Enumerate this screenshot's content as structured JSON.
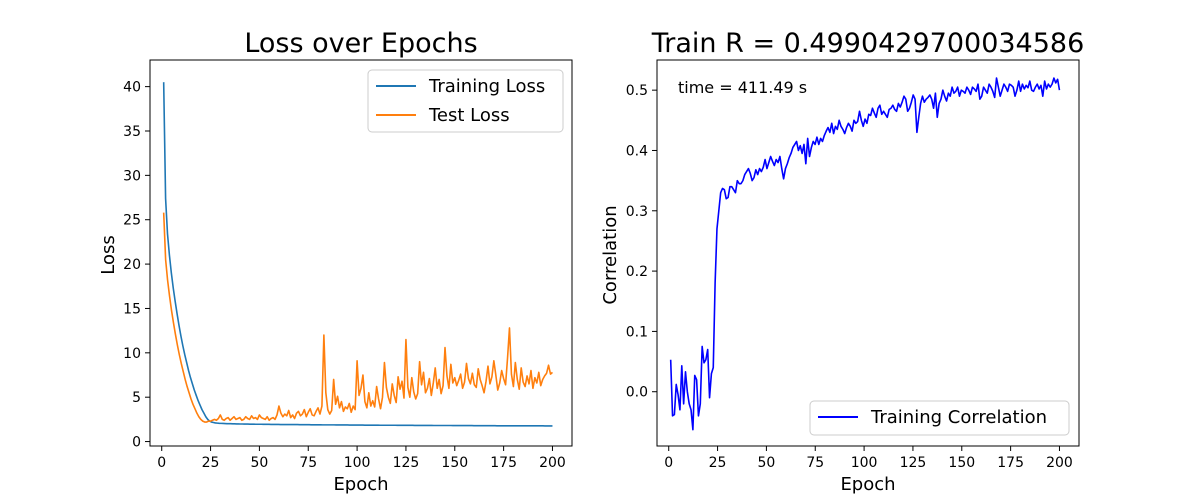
{
  "chart_data": [
    {
      "type": "line",
      "title": "Loss over Epochs",
      "xlabel": "Epoch",
      "ylabel": "Loss",
      "xlim": [
        -6,
        210
      ],
      "ylim": [
        -0.5,
        43
      ],
      "xticks": [
        0,
        25,
        50,
        75,
        100,
        125,
        150,
        175,
        200
      ],
      "yticks": [
        0,
        5,
        10,
        15,
        20,
        25,
        30,
        35,
        40
      ],
      "grid": false,
      "legend_position": "top-right",
      "x_range": [
        1,
        200
      ],
      "series": [
        {
          "name": "Training Loss",
          "color": "#1f77b4",
          "values": [
            40.5,
            27.4,
            23.4,
            21.0,
            19.0,
            17.3,
            15.8,
            14.4,
            13.1,
            11.9,
            10.8,
            9.8,
            8.9,
            8.0,
            7.2,
            6.5,
            5.8,
            5.2,
            4.6,
            4.1,
            3.6,
            3.2,
            2.8,
            2.5,
            2.3,
            2.2,
            2.15,
            2.1,
            2.08,
            2.06,
            2.05,
            2.04,
            2.03,
            2.02,
            2.02,
            2.01,
            2.0,
            2.0,
            1.99,
            1.99,
            1.98,
            1.98,
            1.97,
            1.97,
            1.97,
            1.96,
            1.96,
            1.96,
            1.95,
            1.95,
            1.95,
            1.95,
            1.94,
            1.94,
            1.94,
            1.94,
            1.93,
            1.93,
            1.93,
            1.93,
            1.93,
            1.92,
            1.92,
            1.92,
            1.92,
            1.92,
            1.91,
            1.91,
            1.91,
            1.91,
            1.91,
            1.9,
            1.9,
            1.9,
            1.9,
            1.9,
            1.9,
            1.89,
            1.89,
            1.89,
            1.89,
            1.89,
            1.89,
            1.88,
            1.88,
            1.88,
            1.88,
            1.88,
            1.88,
            1.88,
            1.87,
            1.87,
            1.87,
            1.87,
            1.87,
            1.87,
            1.87,
            1.86,
            1.86,
            1.86,
            1.86,
            1.86,
            1.86,
            1.86,
            1.86,
            1.85,
            1.85,
            1.85,
            1.85,
            1.85,
            1.85,
            1.85,
            1.85,
            1.84,
            1.84,
            1.84,
            1.84,
            1.84,
            1.84,
            1.84,
            1.84,
            1.84,
            1.83,
            1.83,
            1.83,
            1.83,
            1.83,
            1.83,
            1.83,
            1.83,
            1.83,
            1.82,
            1.82,
            1.82,
            1.82,
            1.82,
            1.82,
            1.82,
            1.82,
            1.82,
            1.82,
            1.81,
            1.81,
            1.81,
            1.81,
            1.81,
            1.81,
            1.81,
            1.81,
            1.81,
            1.81,
            1.8,
            1.8,
            1.8,
            1.8,
            1.8,
            1.8,
            1.8,
            1.8,
            1.8,
            1.8,
            1.8,
            1.79,
            1.79,
            1.79,
            1.79,
            1.79,
            1.79,
            1.79,
            1.79,
            1.79,
            1.79,
            1.79,
            1.79,
            1.78,
            1.78,
            1.78,
            1.78,
            1.78,
            1.78,
            1.78,
            1.78,
            1.78,
            1.78,
            1.78,
            1.78,
            1.77,
            1.77,
            1.77,
            1.77,
            1.77,
            1.77,
            1.77,
            1.77,
            1.77,
            1.77,
            1.77,
            1.77,
            1.77,
            1.76,
            1.76,
            1.76,
            1.76,
            1.76
          ]
        },
        {
          "name": "Test Loss",
          "color": "#ff7f0e",
          "values": [
            25.8,
            20.5,
            18.2,
            16.4,
            14.8,
            13.4,
            12.1,
            10.9,
            9.8,
            8.8,
            7.9,
            7.0,
            6.2,
            5.5,
            4.8,
            4.2,
            3.7,
            3.2,
            2.8,
            2.5,
            2.3,
            2.2,
            2.2,
            2.3,
            2.3,
            2.4,
            2.5,
            2.4,
            2.6,
            3.0,
            2.5,
            2.4,
            2.6,
            2.7,
            2.4,
            2.6,
            2.8,
            2.5,
            2.6,
            2.7,
            2.4,
            2.5,
            2.8,
            2.6,
            2.5,
            2.9,
            2.6,
            2.7,
            2.5,
            3.0,
            2.7,
            2.6,
            2.5,
            2.8,
            2.4,
            2.6,
            2.7,
            2.5,
            3.0,
            4.0,
            3.2,
            2.8,
            3.1,
            2.9,
            3.5,
            2.7,
            3.0,
            2.6,
            3.2,
            3.4,
            2.9,
            3.1,
            3.6,
            2.8,
            3.3,
            3.7,
            3.0,
            2.9,
            3.4,
            3.8,
            3.1,
            4.0,
            12.0,
            5.5,
            3.6,
            3.1,
            3.5,
            7.0,
            4.2,
            5.1,
            3.8,
            4.5,
            3.4,
            3.9,
            3.7,
            4.3,
            3.3,
            4.0,
            3.6,
            9.1,
            5.2,
            6.0,
            7.5,
            4.5,
            3.8,
            5.5,
            4.0,
            4.6,
            3.9,
            6.2,
            4.8,
            3.7,
            5.0,
            8.9,
            6.1,
            5.0,
            4.3,
            6.5,
            5.2,
            4.4,
            7.3,
            5.9,
            6.8,
            4.9,
            11.5,
            6.1,
            5.0,
            7.2,
            5.6,
            4.8,
            5.4,
            9.0,
            6.4,
            7.8,
            5.5,
            6.0,
            7.1,
            5.2,
            6.6,
            8.3,
            6.0,
            7.0,
            5.4,
            6.3,
            10.6,
            7.4,
            6.0,
            8.7,
            6.6,
            7.2,
            6.3,
            6.9,
            7.6,
            6.0,
            6.7,
            8.8,
            7.1,
            6.5,
            7.7,
            6.4,
            6.1,
            8.2,
            7.0,
            6.3,
            5.5,
            6.8,
            8.5,
            6.5,
            7.3,
            9.1,
            7.5,
            5.8,
            6.6,
            8.0,
            7.1,
            6.4,
            9.4,
            12.8,
            7.6,
            6.2,
            8.9,
            7.0,
            5.9,
            8.3,
            6.7,
            6.2,
            7.4,
            6.5,
            8.0,
            6.0,
            7.2,
            6.6,
            7.8,
            6.3,
            7.0,
            7.4,
            7.7,
            8.6,
            7.6,
            7.8
          ]
        }
      ]
    },
    {
      "type": "line",
      "title": "Train R = 0.4990429700034586",
      "xlabel": "Epoch",
      "ylabel": "Correlation",
      "xlim": [
        -6,
        210
      ],
      "ylim": [
        -0.09,
        0.55
      ],
      "xticks": [
        0,
        25,
        50,
        75,
        100,
        125,
        150,
        175,
        200
      ],
      "yticks": [
        0.0,
        0.1,
        0.2,
        0.3,
        0.4,
        0.5
      ],
      "grid": false,
      "legend_position": "bottom-right",
      "annotation": "time = 411.49 s",
      "x_range": [
        1,
        200
      ],
      "series": [
        {
          "name": "Training Correlation",
          "color": "#0000ff",
          "values": [
            0.053,
            -0.04,
            -0.038,
            0.012,
            -0.005,
            -0.03,
            0.043,
            -0.02,
            0.033,
            0.0,
            -0.02,
            -0.03,
            -0.063,
            0.027,
            0.02,
            -0.04,
            -0.02,
            0.075,
            0.048,
            0.053,
            0.07,
            -0.01,
            0.03,
            0.04,
            0.18,
            0.27,
            0.3,
            0.33,
            0.337,
            0.335,
            0.32,
            0.322,
            0.34,
            0.34,
            0.335,
            0.33,
            0.35,
            0.345,
            0.345,
            0.35,
            0.36,
            0.365,
            0.37,
            0.362,
            0.35,
            0.355,
            0.368,
            0.36,
            0.37,
            0.365,
            0.372,
            0.385,
            0.37,
            0.38,
            0.39,
            0.382,
            0.375,
            0.385,
            0.38,
            0.39,
            0.37,
            0.353,
            0.37,
            0.378,
            0.388,
            0.395,
            0.405,
            0.41,
            0.415,
            0.4,
            0.408,
            0.395,
            0.41,
            0.378,
            0.42,
            0.39,
            0.405,
            0.415,
            0.41,
            0.422,
            0.41,
            0.42,
            0.415,
            0.425,
            0.432,
            0.438,
            0.43,
            0.445,
            0.428,
            0.44,
            0.435,
            0.45,
            0.44,
            0.435,
            0.428,
            0.438,
            0.445,
            0.44,
            0.432,
            0.45,
            0.445,
            0.448,
            0.465,
            0.45,
            0.44,
            0.452,
            0.445,
            0.46,
            0.458,
            0.47,
            0.462,
            0.455,
            0.47,
            0.475,
            0.46,
            0.465,
            0.46,
            0.455,
            0.468,
            0.47,
            0.475,
            0.468,
            0.465,
            0.478,
            0.472,
            0.48,
            0.49,
            0.485,
            0.465,
            0.47,
            0.48,
            0.492,
            0.485,
            0.43,
            0.455,
            0.478,
            0.49,
            0.48,
            0.485,
            0.488,
            0.492,
            0.485,
            0.47,
            0.495,
            0.455,
            0.478,
            0.485,
            0.5,
            0.49,
            0.482,
            0.495,
            0.49,
            0.505,
            0.495,
            0.498,
            0.505,
            0.49,
            0.5,
            0.498,
            0.495,
            0.505,
            0.5,
            0.493,
            0.505,
            0.502,
            0.498,
            0.51,
            0.485,
            0.49,
            0.505,
            0.5,
            0.495,
            0.51,
            0.505,
            0.498,
            0.488,
            0.52,
            0.505,
            0.49,
            0.5,
            0.51,
            0.505,
            0.498,
            0.51,
            0.508,
            0.505,
            0.49,
            0.5,
            0.515,
            0.498,
            0.51,
            0.502,
            0.508,
            0.504,
            0.515,
            0.5,
            0.498,
            0.505,
            0.51,
            0.502,
            0.508,
            0.49,
            0.515,
            0.502,
            0.51,
            0.505,
            0.51,
            0.52,
            0.512,
            0.518,
            0.5
          ]
        }
      ]
    }
  ]
}
